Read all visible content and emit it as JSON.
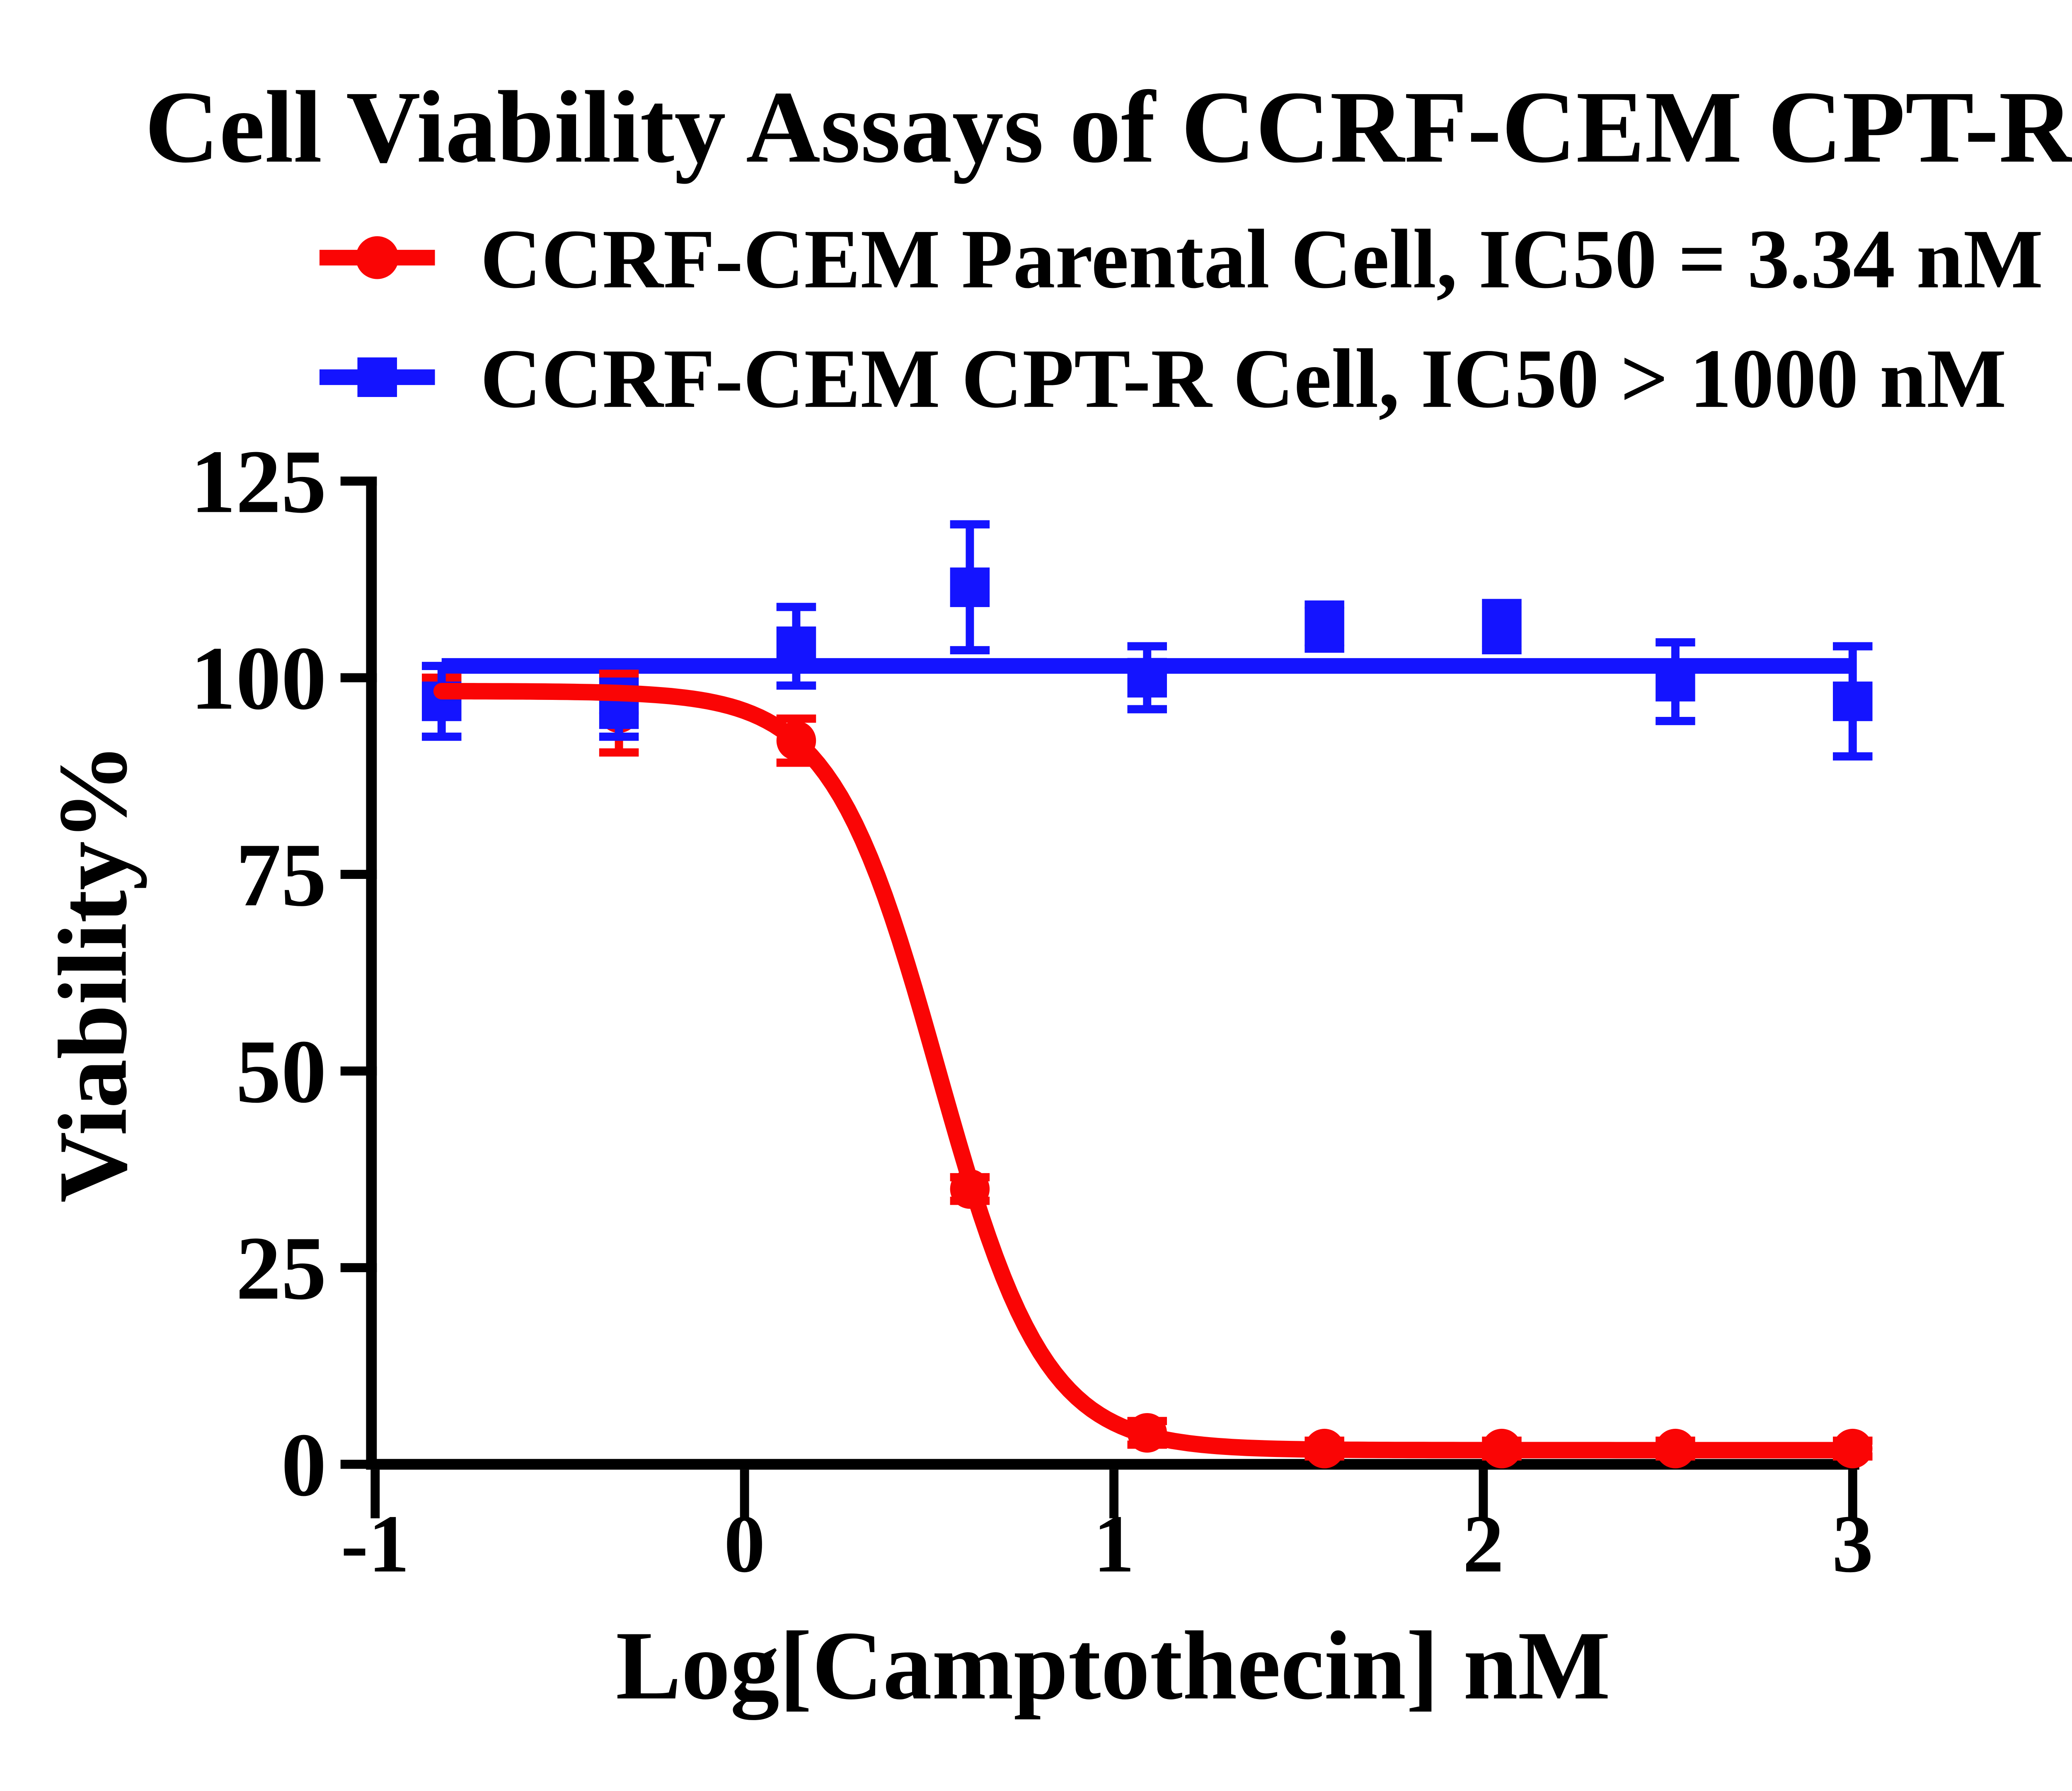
{
  "title": "Cell Viability Assays of CCRF-CEM CPT-R",
  "legend": [
    {
      "label": "CCRF-CEM Parental Cell, IC50 = 3.34 nM",
      "marker": "circle",
      "color": "#fa0505"
    },
    {
      "label": "CCRF-CEM CPT-R Cell, IC50 > 1000 nM",
      "marker": "square",
      "color": "#1414ff"
    }
  ],
  "chart_data": {
    "type": "scatter",
    "title": "Cell Viability Assays of CCRF-CEM CPT-R",
    "xlabel": "Log[Camptothecin] nM",
    "ylabel": "Viability%",
    "grid": false,
    "legend_position": "top-left",
    "xaxis": {
      "ticks": [
        -1,
        0,
        1,
        2,
        3
      ],
      "range": [
        -1,
        3
      ]
    },
    "yaxis": {
      "ticks": [
        0,
        25,
        50,
        75,
        100,
        125
      ],
      "range": [
        0,
        125
      ]
    },
    "series": [
      {
        "name": "CCRF-CEM Parental Cell",
        "ic50": "IC50 = 3.34 nM",
        "color": "#fa0505",
        "marker": "circle",
        "x": [
          -0.82,
          -0.34,
          0.14,
          0.61,
          1.09,
          1.57,
          2.05,
          2.52,
          3.0
        ],
        "y": [
          98,
          95.5,
          92,
          35,
          4,
          2,
          2,
          2,
          2
        ],
        "err": [
          2,
          5,
          2.8,
          1.5,
          1.5,
          1,
          1,
          1,
          1
        ],
        "fit": {
          "type": "sigmoid",
          "top": 98.3,
          "bottom": 1.8,
          "logIC50": 0.524,
          "hill": 3.0
        }
      },
      {
        "name": "CCRF-CEM CPT-R Cell",
        "ic50": "IC50 > 1000 nM",
        "color": "#1414ff",
        "marker": "square",
        "x": [
          -0.82,
          -0.34,
          0.14,
          0.61,
          1.09,
          1.57,
          2.05,
          2.52,
          3.0
        ],
        "y": [
          97,
          96,
          104,
          111.5,
          100,
          106.5,
          106.5,
          99.5,
          97
        ],
        "err": [
          4.5,
          3.5,
          5,
          8,
          4,
          2.8,
          3,
          5,
          7
        ],
        "fit": {
          "type": "flat",
          "level": 101.5
        }
      }
    ]
  }
}
